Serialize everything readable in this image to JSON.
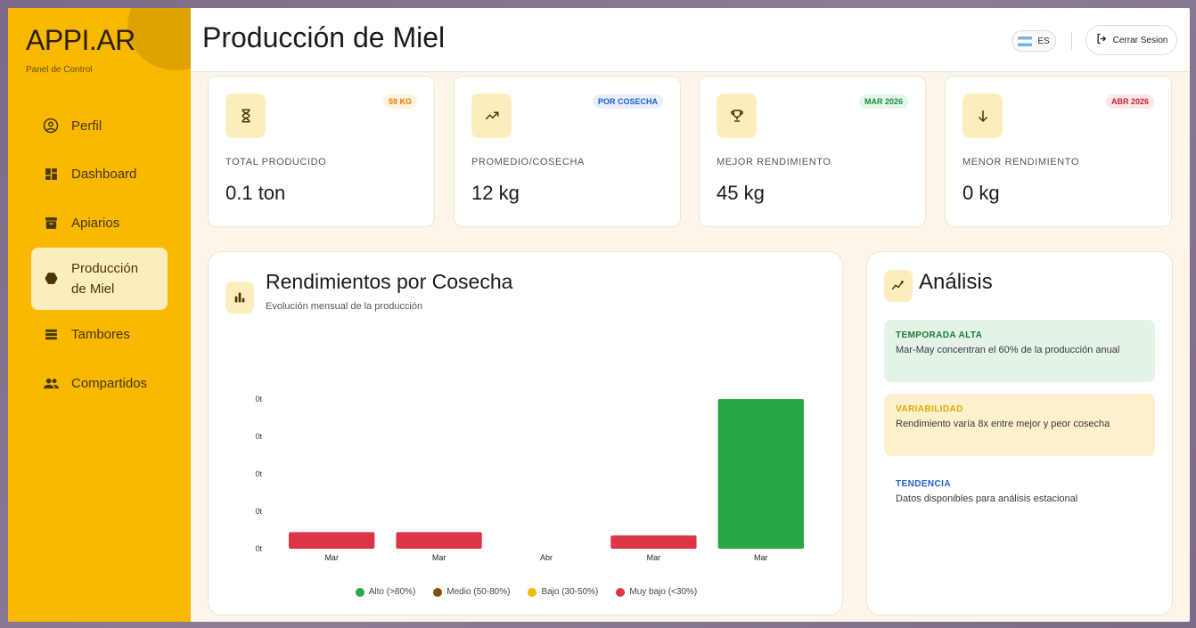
{
  "app": {
    "logo": "APPI.AR",
    "subtitle": "Panel de Control"
  },
  "sidebar": {
    "items": [
      {
        "label": "Perfil",
        "icon": "user-circle-icon"
      },
      {
        "label": "Dashboard",
        "icon": "dashboard-icon"
      },
      {
        "label": "Apiarios",
        "icon": "archive-icon"
      },
      {
        "label": "Producción de Miel",
        "icon": "hexagon-icon",
        "active": true
      },
      {
        "label": "Tambores",
        "icon": "list-icon"
      },
      {
        "label": "Compartidos",
        "icon": "people-icon"
      }
    ]
  },
  "header": {
    "title": "Producción de Miel",
    "lang": "ES",
    "logout": "Cerrar Sesion"
  },
  "stats": [
    {
      "label": "TOTAL PRODUCIDO",
      "value": "0.1 ton",
      "badge": "59 KG",
      "badge_color": "#e07b00",
      "badge_bg": "#fdf3de",
      "icon": "hourglass-icon"
    },
    {
      "label": "PROMEDIO/COSECHA",
      "value": "12 kg",
      "badge": "POR COSECHA",
      "badge_color": "#1f5fc9",
      "badge_bg": "#e7efff",
      "icon": "trending-up-icon"
    },
    {
      "label": "MEJOR RENDIMIENTO",
      "value": "45 kg",
      "badge": "MAR 2026",
      "badge_color": "#1c8a3a",
      "badge_bg": "#e4f6e8",
      "icon": "trophy-icon"
    },
    {
      "label": "MENOR RENDIMIENTO",
      "value": "0 kg",
      "badge": "ABR 2026",
      "badge_color": "#c8202f",
      "badge_bg": "#fde6e8",
      "icon": "arrow-down-icon"
    }
  ],
  "chart": {
    "title": "Rendimientos por Cosecha",
    "subtitle": "Evolución mensual de la producción"
  },
  "chart_data": {
    "type": "bar",
    "categories": [
      "Mar",
      "Mar",
      "Abr",
      "Mar",
      "Mar"
    ],
    "values": [
      5,
      5,
      0,
      4,
      45
    ],
    "bar_colors": [
      "#dc3545",
      "#dc3545",
      "#dc3545",
      "#dc3545",
      "#27a844"
    ],
    "y_tick_labels": [
      "0t",
      "0t",
      "0t",
      "0t",
      "0t"
    ],
    "ylim": [
      0,
      45
    ],
    "legend": [
      {
        "label": "Alto (>80%)",
        "color": "#27a844"
      },
      {
        "label": "Medio (50-80%)",
        "color": "#7a5200"
      },
      {
        "label": "Bajo (30-50%)",
        "color": "#f8b900"
      },
      {
        "label": "Muy bajo (<30%)",
        "color": "#dc3545"
      }
    ],
    "legend_position": "bottom"
  },
  "analysis": {
    "title": "Análisis",
    "insights": [
      {
        "heading": "TEMPORADA ALTA",
        "text": "Mar-May concentran el 60% de la producción anual",
        "heading_color": "#1c7a3a",
        "bg": "#e3f3e6"
      },
      {
        "heading": "VARIABILIDAD",
        "text": "Rendimiento varía 8x entre mejor y peor cosecha",
        "heading_color": "#e0a800",
        "bg": "#fdf0cc"
      },
      {
        "heading": "TENDENCIA",
        "text": "Datos disponibles para análisis estacional",
        "heading_color": "#1f5fc9",
        "bg": "#ffffff"
      }
    ]
  }
}
